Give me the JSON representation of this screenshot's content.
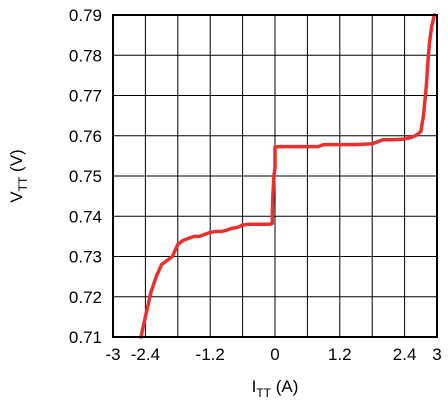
{
  "chart_data": {
    "type": "line",
    "xlabel": {
      "main": "I",
      "sub": "TT",
      "rest": " (A)"
    },
    "ylabel": {
      "main": "V",
      "sub": "TT",
      "rest": " (V)"
    },
    "xlim": [
      -3,
      3
    ],
    "ylim": [
      0.71,
      0.79
    ],
    "x_ticks": [
      -3,
      -2.4,
      -1.2,
      0,
      1.2,
      2.4,
      3
    ],
    "x_tick_labels": [
      "-3",
      "-2.4",
      "-1.2",
      "0",
      "1.2",
      "2.4",
      "3"
    ],
    "y_ticks": [
      0.71,
      0.72,
      0.73,
      0.74,
      0.75,
      0.76,
      0.77,
      0.78,
      0.79
    ],
    "y_tick_labels": [
      "0.71",
      "0.72",
      "0.73",
      "0.74",
      "0.75",
      "0.76",
      "0.77",
      "0.78",
      "0.79"
    ],
    "grid": true,
    "x_grid_step": 0.6,
    "y_grid_step": 0.01,
    "series": [
      {
        "color": "#e8302e",
        "x": [
          -2.48,
          -2.45,
          -2.4,
          -2.35,
          -2.3,
          -2.25,
          -2.2,
          -2.1,
          -2.0,
          -1.9,
          -1.8,
          -1.7,
          -1.6,
          -1.5,
          -1.4,
          -1.3,
          -1.2,
          -1.1,
          -1.0,
          -0.9,
          -0.8,
          -0.7,
          -0.6,
          -0.5,
          -0.4,
          -0.3,
          -0.2,
          -0.1,
          -0.05,
          -0.05,
          -0.04,
          -0.02,
          0.0,
          0.0,
          0.1,
          0.3,
          0.5,
          0.8,
          0.9,
          1.0,
          1.2,
          1.5,
          1.8,
          2.0,
          2.2,
          2.4,
          2.5,
          2.6,
          2.7,
          2.75,
          2.8,
          2.83,
          2.86,
          2.9,
          2.95
        ],
        "y": [
          0.71,
          0.712,
          0.715,
          0.718,
          0.721,
          0.723,
          0.725,
          0.728,
          0.729,
          0.73,
          0.733,
          0.734,
          0.7345,
          0.735,
          0.735,
          0.7355,
          0.736,
          0.7362,
          0.7362,
          0.7365,
          0.737,
          0.7372,
          0.7378,
          0.738,
          0.738,
          0.738,
          0.738,
          0.738,
          0.7382,
          0.74,
          0.745,
          0.75,
          0.752,
          0.7572,
          0.7573,
          0.7573,
          0.7573,
          0.7573,
          0.7578,
          0.7578,
          0.7578,
          0.7578,
          0.758,
          0.759,
          0.759,
          0.7592,
          0.7595,
          0.76,
          0.761,
          0.765,
          0.772,
          0.778,
          0.783,
          0.787,
          0.79
        ]
      }
    ]
  }
}
